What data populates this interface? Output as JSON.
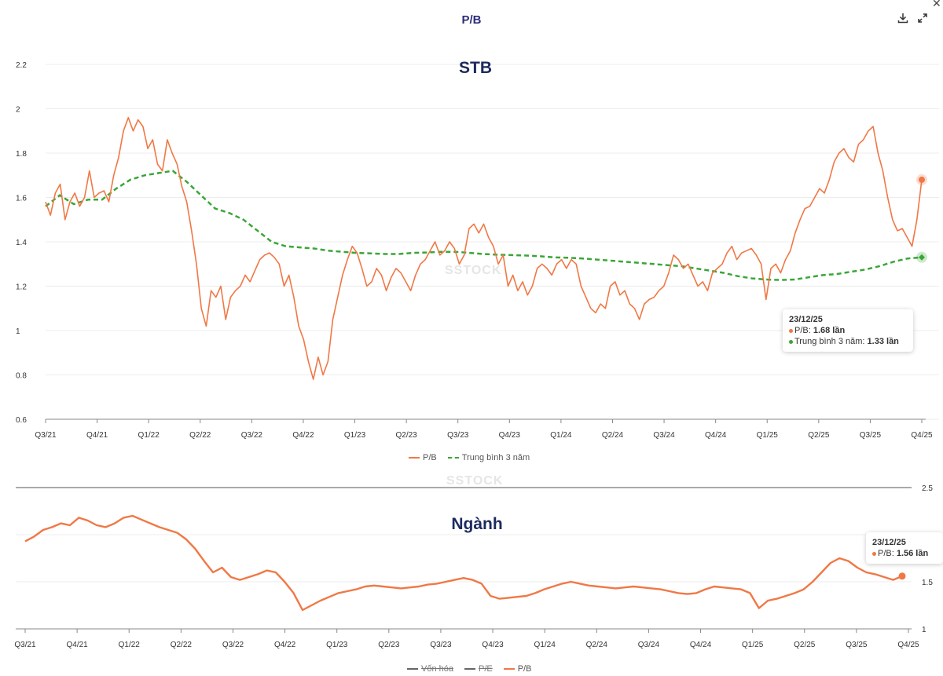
{
  "header": {
    "title": "P/B",
    "download_icon": "download-icon",
    "expand_icon": "expand-icon",
    "close_icon": "close-icon",
    "close_glyph": "✕"
  },
  "watermark": "SSTOCK",
  "colors": {
    "pb": "#f07845",
    "avg": "#3aa637",
    "title": "#1c2a5e"
  },
  "chart_data": [
    {
      "type": "line",
      "title": "STB",
      "x_ticks": [
        "Q3/21",
        "Q4/21",
        "Q1/22",
        "Q2/22",
        "Q3/22",
        "Q4/22",
        "Q1/23",
        "Q2/23",
        "Q3/23",
        "Q4/23",
        "Q1/24",
        "Q2/24",
        "Q3/24",
        "Q4/24",
        "Q1/25",
        "Q2/25",
        "Q3/25",
        "Q4/25"
      ],
      "y_ticks": [
        "0.6",
        "0.8",
        "1",
        "1.2",
        "1.4",
        "1.6",
        "1.8",
        "2",
        "2.2"
      ],
      "ylim": [
        0.6,
        2.2
      ],
      "grid": true,
      "legend": "bottom",
      "series": [
        {
          "name": "P/B",
          "values": [
            1.58,
            1.52,
            1.62,
            1.66,
            1.5,
            1.58,
            1.62,
            1.56,
            1.6,
            1.72,
            1.6,
            1.62,
            1.63,
            1.58,
            1.7,
            1.78,
            1.9,
            1.96,
            1.9,
            1.95,
            1.92,
            1.82,
            1.86,
            1.75,
            1.72,
            1.86,
            1.8,
            1.75,
            1.65,
            1.58,
            1.45,
            1.3,
            1.1,
            1.02,
            1.18,
            1.15,
            1.2,
            1.05,
            1.15,
            1.18,
            1.2,
            1.25,
            1.22,
            1.27,
            1.32,
            1.34,
            1.35,
            1.33,
            1.3,
            1.2,
            1.25,
            1.15,
            1.02,
            0.96,
            0.86,
            0.78,
            0.88,
            0.8,
            0.86,
            1.05,
            1.15,
            1.25,
            1.32,
            1.38,
            1.35,
            1.28,
            1.2,
            1.22,
            1.28,
            1.25,
            1.18,
            1.24,
            1.28,
            1.26,
            1.22,
            1.18,
            1.25,
            1.3,
            1.32,
            1.36,
            1.4,
            1.34,
            1.36,
            1.4,
            1.37,
            1.3,
            1.34,
            1.46,
            1.48,
            1.44,
            1.48,
            1.42,
            1.38,
            1.3,
            1.34,
            1.2,
            1.25,
            1.18,
            1.22,
            1.16,
            1.2,
            1.28,
            1.3,
            1.28,
            1.25,
            1.3,
            1.32,
            1.28,
            1.32,
            1.3,
            1.2,
            1.15,
            1.1,
            1.08,
            1.12,
            1.1,
            1.2,
            1.22,
            1.16,
            1.18,
            1.12,
            1.1,
            1.05,
            1.12,
            1.14,
            1.15,
            1.18,
            1.2,
            1.26,
            1.34,
            1.32,
            1.28,
            1.3,
            1.25,
            1.2,
            1.22,
            1.18,
            1.26,
            1.28,
            1.3,
            1.35,
            1.38,
            1.32,
            1.35,
            1.36,
            1.37,
            1.34,
            1.3,
            1.14,
            1.28,
            1.3,
            1.26,
            1.32,
            1.36,
            1.44,
            1.5,
            1.55,
            1.56,
            1.6,
            1.64,
            1.62,
            1.68,
            1.76,
            1.8,
            1.82,
            1.78,
            1.76,
            1.84,
            1.86,
            1.9,
            1.92,
            1.8,
            1.72,
            1.6,
            1.5,
            1.45,
            1.46,
            1.42,
            1.38,
            1.5,
            1.68
          ]
        },
        {
          "name": "Trung bình 3 năm",
          "values": [
            1.56,
            1.61,
            1.57,
            1.59,
            1.59,
            1.64,
            1.68,
            1.7,
            1.71,
            1.72,
            1.67,
            1.61,
            1.55,
            1.53,
            1.5,
            1.45,
            1.4,
            1.38,
            1.375,
            1.37,
            1.36,
            1.355,
            1.35,
            1.348,
            1.345,
            1.345,
            1.35,
            1.352,
            1.355,
            1.355,
            1.35,
            1.345,
            1.342,
            1.34,
            1.338,
            1.335,
            1.33,
            1.328,
            1.325,
            1.32,
            1.315,
            1.31,
            1.305,
            1.3,
            1.295,
            1.29,
            1.28,
            1.27,
            1.26,
            1.245,
            1.235,
            1.23,
            1.228,
            1.23,
            1.24,
            1.25,
            1.255,
            1.265,
            1.275,
            1.29,
            1.31,
            1.325,
            1.33
          ]
        }
      ],
      "tooltip": {
        "date": "23/12/25",
        "rows": [
          {
            "label": "P/B: ",
            "value": "1.68 lần",
            "color": "#f07845"
          },
          {
            "label": "Trung bình 3 năm: ",
            "value": "1.33 lần",
            "color": "#3aa637"
          }
        ]
      }
    },
    {
      "type": "line",
      "title": "Ngành",
      "x_ticks": [
        "Q3/21",
        "Q4/21",
        "Q1/22",
        "Q2/22",
        "Q3/22",
        "Q4/22",
        "Q1/23",
        "Q2/23",
        "Q3/23",
        "Q4/23",
        "Q1/24",
        "Q2/24",
        "Q3/24",
        "Q4/24",
        "Q1/25",
        "Q2/25",
        "Q3/25",
        "Q4/25"
      ],
      "y_ticks": [
        "1",
        "1.5",
        "2.5"
      ],
      "grid": true,
      "legend": "bottom",
      "legend_items": [
        {
          "name": "Vốn hóa",
          "hidden": true
        },
        {
          "name": "P/E",
          "hidden": true
        },
        {
          "name": "P/B",
          "hidden": false
        }
      ],
      "series": [
        {
          "name": "P/B",
          "values": [
            1.93,
            1.98,
            2.05,
            2.08,
            2.12,
            2.1,
            2.18,
            2.15,
            2.1,
            2.08,
            2.12,
            2.18,
            2.2,
            2.16,
            2.12,
            2.08,
            2.05,
            2.02,
            1.95,
            1.85,
            1.72,
            1.6,
            1.65,
            1.55,
            1.52,
            1.55,
            1.58,
            1.62,
            1.6,
            1.5,
            1.38,
            1.2,
            1.25,
            1.3,
            1.34,
            1.38,
            1.4,
            1.42,
            1.45,
            1.46,
            1.45,
            1.44,
            1.43,
            1.44,
            1.45,
            1.47,
            1.48,
            1.5,
            1.52,
            1.54,
            1.52,
            1.48,
            1.35,
            1.32,
            1.33,
            1.34,
            1.35,
            1.38,
            1.42,
            1.45,
            1.48,
            1.5,
            1.48,
            1.46,
            1.45,
            1.44,
            1.43,
            1.44,
            1.45,
            1.44,
            1.43,
            1.42,
            1.4,
            1.38,
            1.37,
            1.38,
            1.42,
            1.45,
            1.44,
            1.43,
            1.42,
            1.38,
            1.22,
            1.3,
            1.32,
            1.35,
            1.38,
            1.42,
            1.5,
            1.6,
            1.7,
            1.75,
            1.72,
            1.65,
            1.6,
            1.58,
            1.55,
            1.52,
            1.56
          ]
        }
      ],
      "tooltip": {
        "date": "23/12/25",
        "rows": [
          {
            "label": "P/B: ",
            "value": "1.56 lần",
            "color": "#f07845"
          }
        ]
      }
    }
  ]
}
